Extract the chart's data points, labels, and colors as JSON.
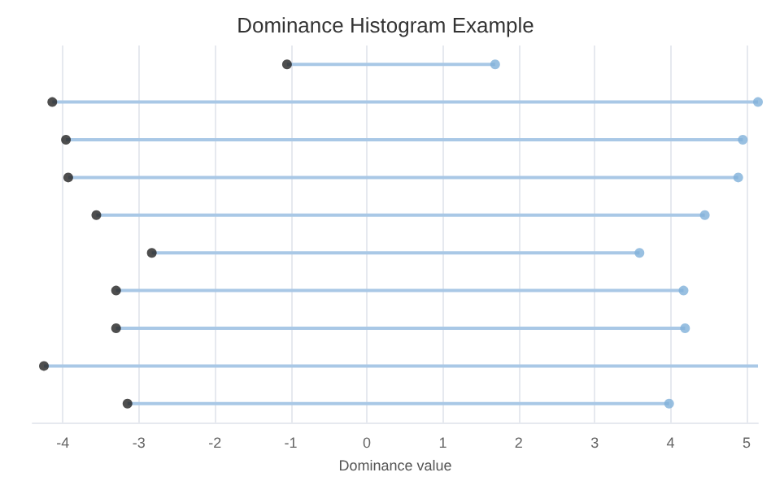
{
  "chart_data": {
    "type": "bar",
    "title": "Dominance Histogram Example",
    "xlabel": "Dominance value",
    "orientation": "horizontal",
    "categories": [
      null,
      null,
      null,
      null,
      null,
      null,
      null,
      null,
      null,
      null
    ],
    "series": [
      {
        "color": "#a9c8e6",
        "base": [
          -1.05,
          -4.14,
          -3.96,
          -3.93,
          -3.56,
          -2.83,
          -3.3,
          -3.3,
          -4.25,
          -3.15
        ],
        "values": [
          2.74,
          9.29,
          8.91,
          8.82,
          8.01,
          6.42,
          7.47,
          7.49,
          9.4,
          7.13
        ]
      },
      {
        "type": "scatter",
        "color": "#222222",
        "marker": "circle",
        "values": [
          -1.05,
          -4.14,
          -3.96,
          -3.93,
          -3.56,
          -2.83,
          -3.3,
          -3.3,
          -4.25,
          -3.15
        ]
      },
      {
        "type": "scatter",
        "color": "#7fb0d9",
        "marker": "circle",
        "values": [
          1.69,
          5.15,
          4.95,
          4.89,
          4.45,
          3.59,
          4.17,
          4.19,
          null,
          3.98
        ]
      }
    ],
    "xlim": [
      -4.4,
      5.15
    ],
    "xticks": [
      -4,
      -3,
      -2,
      -1,
      0,
      1,
      2,
      3,
      4,
      5
    ],
    "grid": "x",
    "tick_labels": "x"
  }
}
